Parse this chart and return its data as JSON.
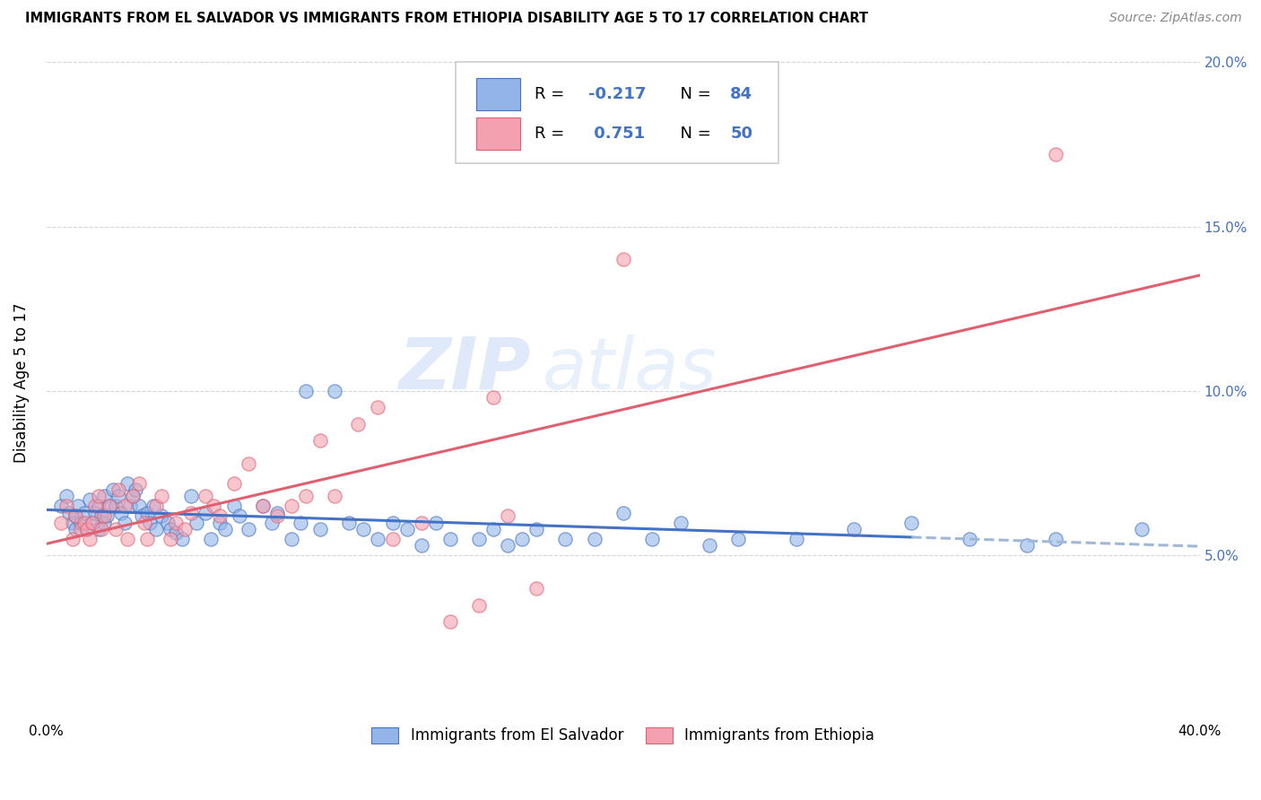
{
  "title": "IMMIGRANTS FROM EL SALVADOR VS IMMIGRANTS FROM ETHIOPIA DISABILITY AGE 5 TO 17 CORRELATION CHART",
  "source": "Source: ZipAtlas.com",
  "ylabel": "Disability Age 5 to 17",
  "x_min": 0.0,
  "x_max": 0.4,
  "y_min": 0.0,
  "y_max": 0.205,
  "y_ticks": [
    0.05,
    0.1,
    0.15,
    0.2
  ],
  "y_tick_labels": [
    "5.0%",
    "10.0%",
    "15.0%",
    "20.0%"
  ],
  "x_ticks": [
    0.0,
    0.1,
    0.2,
    0.3,
    0.4
  ],
  "x_tick_labels": [
    "0.0%",
    "",
    "",
    "",
    "40.0%"
  ],
  "r_salvador": -0.217,
  "n_salvador": 84,
  "r_ethiopia": 0.751,
  "n_ethiopia": 50,
  "color_salvador": "#92b4e8",
  "color_ethiopia": "#f4a0b0",
  "trendline_salvador_color": "#4472c4",
  "trendline_ethiopia_color": "#e06070",
  "trendline_dashed_color": "#a0b8d8",
  "watermark_zip": "ZIP",
  "watermark_atlas": "atlas",
  "legend_label_salvador": "Immigrants from El Salvador",
  "legend_label_ethiopia": "Immigrants from Ethiopia",
  "salvador_x": [
    0.005,
    0.007,
    0.008,
    0.009,
    0.01,
    0.01,
    0.011,
    0.012,
    0.013,
    0.014,
    0.015,
    0.016,
    0.017,
    0.018,
    0.018,
    0.019,
    0.02,
    0.02,
    0.021,
    0.022,
    0.023,
    0.024,
    0.025,
    0.026,
    0.027,
    0.028,
    0.029,
    0.03,
    0.031,
    0.032,
    0.033,
    0.035,
    0.036,
    0.037,
    0.038,
    0.04,
    0.042,
    0.043,
    0.045,
    0.047,
    0.05,
    0.052,
    0.055,
    0.057,
    0.06,
    0.062,
    0.065,
    0.067,
    0.07,
    0.075,
    0.078,
    0.08,
    0.085,
    0.088,
    0.09,
    0.095,
    0.1,
    0.105,
    0.11,
    0.115,
    0.12,
    0.125,
    0.13,
    0.135,
    0.14,
    0.15,
    0.155,
    0.16,
    0.165,
    0.17,
    0.18,
    0.19,
    0.2,
    0.21,
    0.22,
    0.23,
    0.24,
    0.26,
    0.28,
    0.3,
    0.32,
    0.34,
    0.35,
    0.38
  ],
  "salvador_y": [
    0.065,
    0.068,
    0.063,
    0.06,
    0.062,
    0.058,
    0.065,
    0.06,
    0.063,
    0.058,
    0.067,
    0.06,
    0.063,
    0.058,
    0.065,
    0.062,
    0.068,
    0.06,
    0.062,
    0.065,
    0.07,
    0.065,
    0.068,
    0.063,
    0.06,
    0.072,
    0.065,
    0.068,
    0.07,
    0.065,
    0.062,
    0.063,
    0.06,
    0.065,
    0.058,
    0.062,
    0.06,
    0.058,
    0.057,
    0.055,
    0.068,
    0.06,
    0.063,
    0.055,
    0.06,
    0.058,
    0.065,
    0.062,
    0.058,
    0.065,
    0.06,
    0.063,
    0.055,
    0.06,
    0.1,
    0.058,
    0.1,
    0.06,
    0.058,
    0.055,
    0.06,
    0.058,
    0.053,
    0.06,
    0.055,
    0.055,
    0.058,
    0.053,
    0.055,
    0.058,
    0.055,
    0.055,
    0.063,
    0.055,
    0.06,
    0.053,
    0.055,
    0.055,
    0.058,
    0.06,
    0.055,
    0.053,
    0.055,
    0.058
  ],
  "ethiopia_x": [
    0.005,
    0.007,
    0.009,
    0.01,
    0.012,
    0.013,
    0.014,
    0.015,
    0.016,
    0.017,
    0.018,
    0.019,
    0.02,
    0.022,
    0.024,
    0.025,
    0.027,
    0.028,
    0.03,
    0.032,
    0.034,
    0.035,
    0.038,
    0.04,
    0.043,
    0.045,
    0.048,
    0.05,
    0.055,
    0.058,
    0.06,
    0.065,
    0.07,
    0.075,
    0.08,
    0.085,
    0.09,
    0.095,
    0.1,
    0.108,
    0.115,
    0.12,
    0.13,
    0.14,
    0.15,
    0.155,
    0.16,
    0.17,
    0.2,
    0.35
  ],
  "ethiopia_y": [
    0.06,
    0.065,
    0.055,
    0.062,
    0.058,
    0.06,
    0.058,
    0.055,
    0.06,
    0.065,
    0.068,
    0.058,
    0.062,
    0.065,
    0.058,
    0.07,
    0.065,
    0.055,
    0.068,
    0.072,
    0.06,
    0.055,
    0.065,
    0.068,
    0.055,
    0.06,
    0.058,
    0.063,
    0.068,
    0.065,
    0.062,
    0.072,
    0.078,
    0.065,
    0.062,
    0.065,
    0.068,
    0.085,
    0.068,
    0.09,
    0.095,
    0.055,
    0.06,
    0.03,
    0.035,
    0.098,
    0.062,
    0.04,
    0.14,
    0.172
  ]
}
